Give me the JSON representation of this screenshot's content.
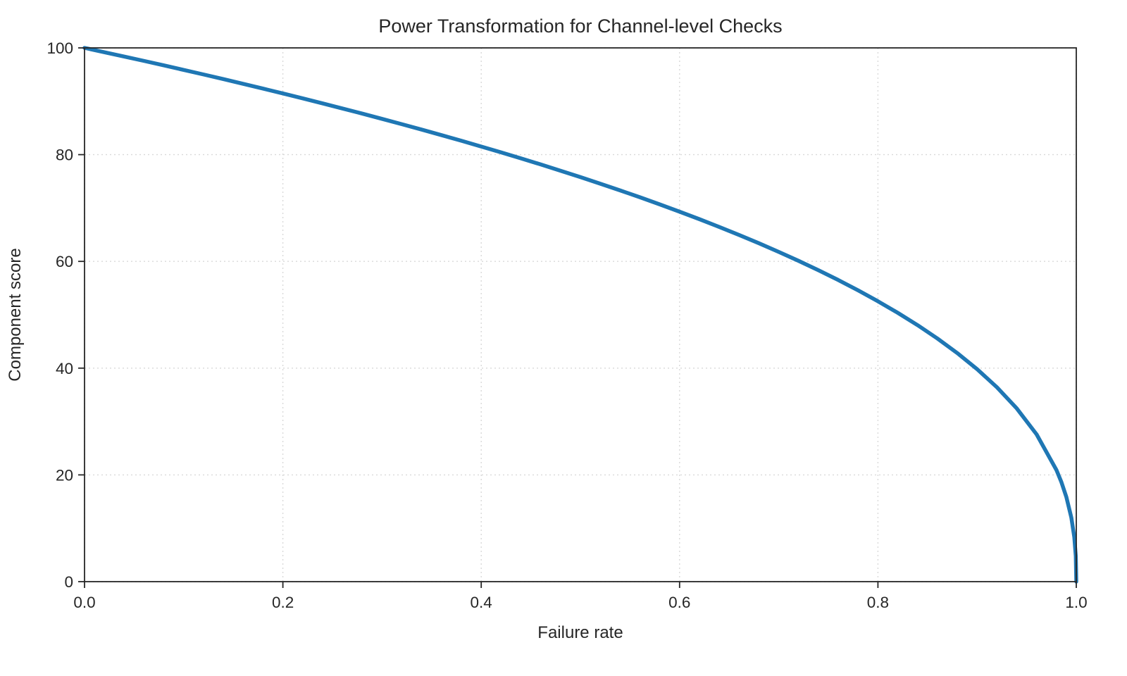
{
  "chart_data": {
    "type": "line",
    "title": "Power Transformation for Channel-level Checks",
    "xlabel": "Failure rate",
    "ylabel": "Component score",
    "xlim": [
      0.0,
      1.0
    ],
    "ylim": [
      0,
      100
    ],
    "x_ticks": [
      0.0,
      0.2,
      0.4,
      0.6,
      0.8,
      1.0
    ],
    "x_tick_labels": [
      "0.0",
      "0.2",
      "0.4",
      "0.6",
      "0.8",
      "1.0"
    ],
    "y_ticks": [
      0,
      20,
      40,
      60,
      80,
      100
    ],
    "y_tick_labels": [
      "0",
      "20",
      "40",
      "60",
      "80",
      "100"
    ],
    "grid": true,
    "grid_style": "dashed",
    "legend": "none",
    "line_color": "#1f77b4",
    "line_width": 5.5,
    "series": [
      {
        "name": "component-score-curve",
        "x": [
          0.0,
          0.02,
          0.04,
          0.06,
          0.08,
          0.1,
          0.12,
          0.14,
          0.16,
          0.18,
          0.2,
          0.22,
          0.24,
          0.26,
          0.28,
          0.3,
          0.32,
          0.34,
          0.36,
          0.38,
          0.4,
          0.42,
          0.44,
          0.46,
          0.48,
          0.5,
          0.52,
          0.54,
          0.56,
          0.58,
          0.6,
          0.62,
          0.64,
          0.66,
          0.68,
          0.7,
          0.72,
          0.74,
          0.76,
          0.78,
          0.8,
          0.82,
          0.84,
          0.86,
          0.88,
          0.9,
          0.92,
          0.94,
          0.96,
          0.98,
          0.985,
          0.99,
          0.995,
          0.998,
          0.9995,
          1.0
        ],
        "y": [
          100.0,
          99.19,
          98.38,
          97.56,
          96.72,
          95.87,
          95.02,
          94.15,
          93.26,
          92.37,
          91.46,
          90.54,
          89.6,
          88.65,
          87.69,
          86.7,
          85.7,
          84.69,
          83.65,
          82.6,
          81.52,
          80.42,
          79.3,
          78.16,
          76.98,
          75.79,
          74.56,
          73.3,
          72.01,
          70.68,
          69.31,
          67.91,
          66.45,
          64.95,
          63.4,
          61.78,
          60.1,
          58.34,
          56.51,
          54.57,
          52.53,
          50.36,
          48.05,
          45.55,
          42.82,
          39.81,
          36.41,
          32.45,
          27.59,
          20.91,
          18.64,
          15.85,
          12.01,
          8.33,
          4.78,
          0.0
        ]
      }
    ]
  },
  "colors": {
    "line": "#1f77b4",
    "grid": "#d9d9d9",
    "spine": "#262626",
    "text": "#262626",
    "background": "#ffffff"
  }
}
